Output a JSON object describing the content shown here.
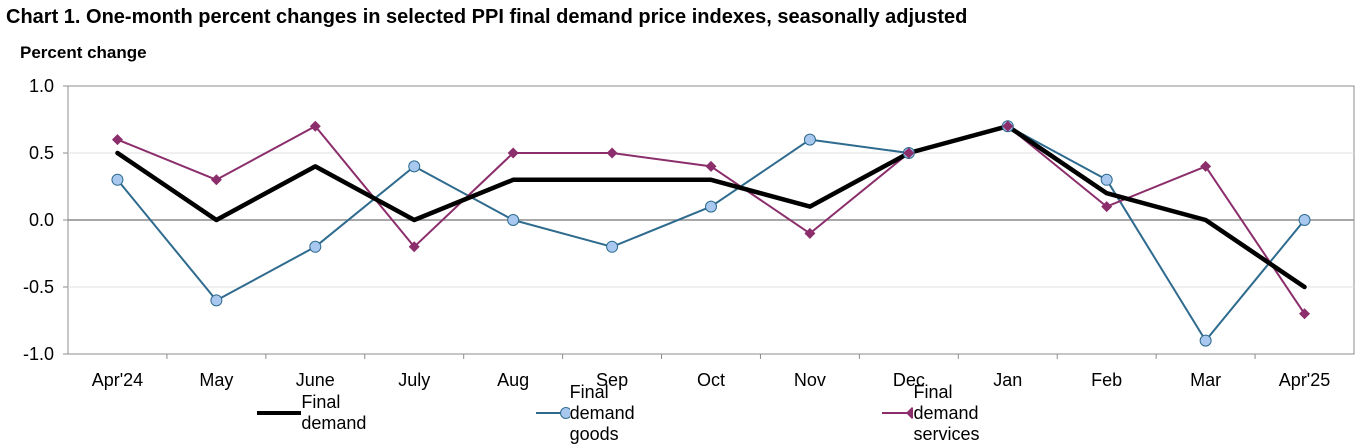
{
  "chart_data": {
    "type": "line",
    "title": "Chart 1. One-month percent changes in selected PPI final demand price indexes, seasonally adjusted",
    "ylabel": "Percent change",
    "xlabel": "",
    "categories": [
      "Apr'24",
      "May",
      "June",
      "July",
      "Aug",
      "Sep",
      "Oct",
      "Nov",
      "Dec",
      "Jan",
      "Feb",
      "Mar",
      "Apr'25"
    ],
    "ylim": [
      -1.0,
      1.0
    ],
    "yticks": [
      "1.0",
      "0.5",
      "0.0",
      "-0.5",
      "-1.0"
    ],
    "ytick_values": [
      1.0,
      0.5,
      0.0,
      -0.5,
      -1.0
    ],
    "grid": true,
    "legend_position": "bottom",
    "series": [
      {
        "name": "Final demand",
        "color": "#000000",
        "marker": "none",
        "values": [
          0.5,
          0.0,
          0.4,
          0.0,
          0.3,
          0.3,
          0.3,
          0.1,
          0.5,
          0.7,
          0.2,
          0.0,
          -0.5
        ]
      },
      {
        "name": "Final demand goods",
        "color": "#2e6b8f",
        "marker": "circle",
        "marker_fill": "#a9c8f0",
        "values": [
          0.3,
          -0.6,
          -0.2,
          0.4,
          0.0,
          -0.2,
          0.1,
          0.6,
          0.5,
          0.7,
          0.3,
          -0.9,
          0.0
        ]
      },
      {
        "name": "Final demand services",
        "color": "#8b2e6b",
        "marker": "diamond",
        "values": [
          0.6,
          0.3,
          0.7,
          -0.2,
          0.5,
          0.5,
          0.4,
          -0.1,
          0.5,
          0.7,
          0.1,
          0.4,
          -0.7
        ]
      }
    ]
  }
}
